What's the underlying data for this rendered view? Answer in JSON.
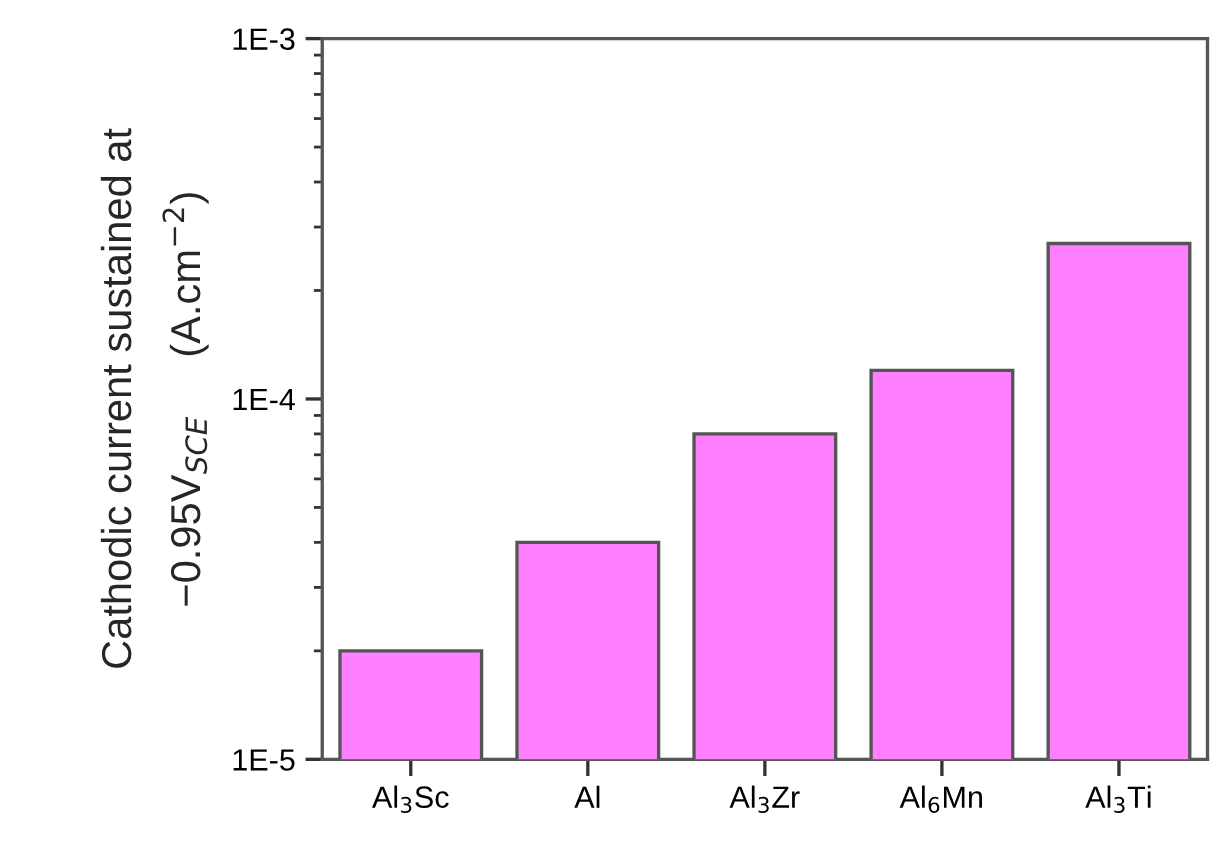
{
  "chart_data": {
    "type": "bar",
    "ylabel": "Cathodic current sustained at\n−0.95V$_{SCE}$     (A.cm$^{−2}$)",
    "categories": [
      "Al$_{3}$Sc",
      "Al",
      "Al$_{3}$Zr",
      "Al$_{6}$Mn",
      "Al$_{3}$Ti"
    ],
    "values": [
      2e-05,
      4e-05,
      8e-05,
      0.00012,
      0.00027
    ],
    "color": "#ff80ff",
    "log": true,
    "ylim": [
      1e-05,
      0.001
    ],
    "yticks": [
      {
        "value": 1e-05,
        "label": "1E-5"
      },
      {
        "value": 0.0001,
        "label": "1E-4"
      },
      {
        "value": 0.001,
        "label": "1E-3"
      }
    ],
    "grid": false,
    "legend": false
  }
}
